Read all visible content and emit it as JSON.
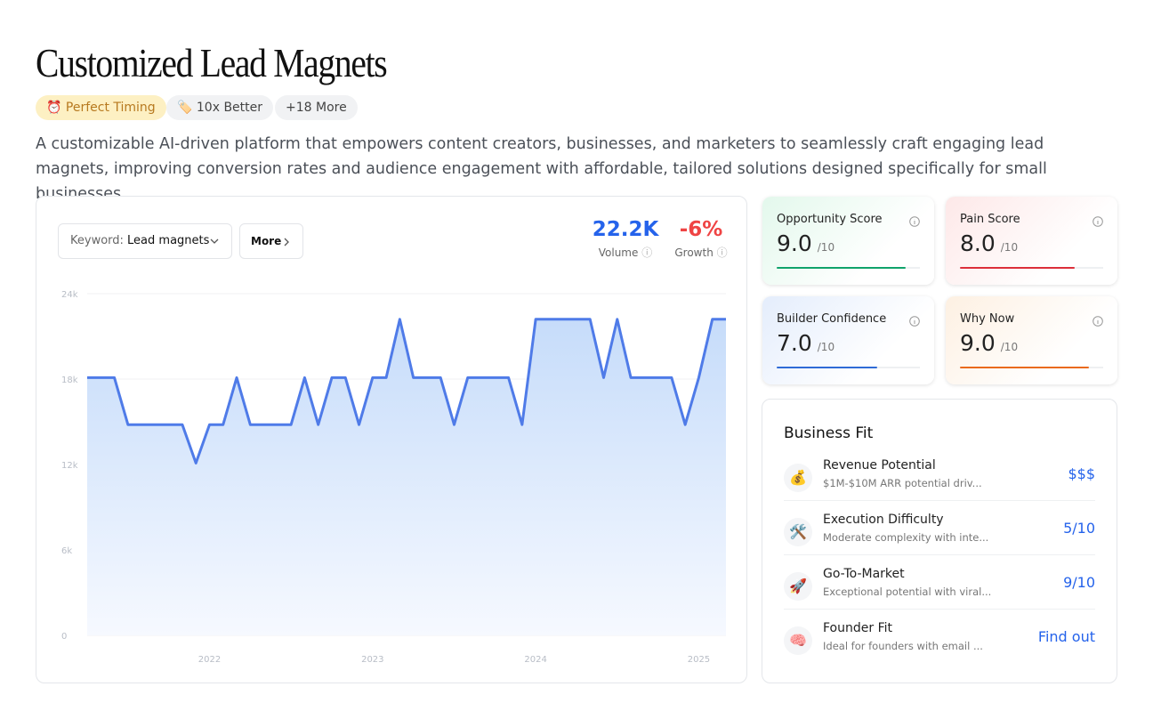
{
  "header": {
    "title": "Customized Lead Magnets",
    "tags": [
      {
        "icon": "⏰",
        "text": "Perfect Timing"
      },
      {
        "icon": "🏷️",
        "text": "10x Better"
      },
      {
        "text": "+18 More"
      }
    ],
    "description": "A customizable AI-driven platform that empowers content creators, businesses, and marketers to seamlessly craft engaging lead magnets, improving conversion rates and audience engagement with affordable, tailored solutions designed specifically for small businesses."
  },
  "controls": {
    "keyword_label": "Keyword:",
    "keyword": "Lead magnets",
    "more": "More"
  },
  "metrics": [
    {
      "value": "22.2K",
      "label": "Volume",
      "color": "#2563eb"
    },
    {
      "value": "-6%",
      "label": "Growth",
      "color": "#ef4444"
    }
  ],
  "chart_data": {
    "type": "area",
    "color": "#4f7be8",
    "categories": [
      null,
      null,
      null,
      null,
      null,
      null,
      null,
      null,
      null,
      "2022",
      null,
      null,
      null,
      null,
      null,
      null,
      null,
      null,
      null,
      null,
      null,
      "2023",
      null,
      null,
      null,
      null,
      null,
      null,
      null,
      null,
      null,
      null,
      null,
      "2024",
      null,
      null,
      null,
      null,
      null,
      null,
      null,
      null,
      null,
      null,
      null,
      "2025",
      null,
      null
    ],
    "values": [
      18100,
      18100,
      18100,
      14800,
      14800,
      14800,
      14800,
      14800,
      12100,
      14800,
      14800,
      18100,
      14800,
      14800,
      14800,
      14800,
      18100,
      14800,
      18100,
      18100,
      14800,
      18100,
      18100,
      22200,
      18100,
      18100,
      18100,
      14800,
      18100,
      18100,
      18100,
      18100,
      14800,
      22200,
      22200,
      22200,
      22200,
      22200,
      18100,
      22200,
      18100,
      18100,
      18100,
      18100,
      14800,
      18100,
      22200,
      22200
    ],
    "ylim": [
      0,
      24000
    ],
    "yticks": [
      0,
      {
        "value": 6000,
        "label": "6k"
      },
      {
        "value": 12000,
        "label": "12k"
      },
      {
        "value": 18000,
        "label": "18k"
      },
      {
        "value": 24000,
        "label": "24k"
      }
    ],
    "grid": true
  },
  "scores": [
    {
      "name": "Opportunity Score",
      "score": 9,
      "score_label": "9.0",
      "max": 10,
      "max_label": "/10",
      "color": "#10a36b",
      "bg": "linear-gradient(135deg,#e3f8ec,#ffffff 70%)"
    },
    {
      "name": "Pain Score",
      "score": 8,
      "score_label": "8.0",
      "max": 10,
      "max_label": "/10",
      "color": "#dc2f3a",
      "bg": "linear-gradient(135deg,#fde8e8,#ffffff 70%)"
    },
    {
      "name": "Builder Confidence",
      "score": 7,
      "score_label": "7.0",
      "max": 10,
      "max_label": "/10",
      "color": "#2f6bd6",
      "bg": "linear-gradient(135deg,#e4edfc,#ffffff 70%)"
    },
    {
      "name": "Why Now",
      "score": 9,
      "score_label": "9.0",
      "max": 10,
      "max_label": "/10",
      "color": "#ea6a1c",
      "bg": "linear-gradient(135deg,#fdf0e2,#ffffff 70%)"
    }
  ],
  "business_fit": {
    "title": "Business Fit",
    "rows": [
      {
        "icon": "💰",
        "title": "Revenue Potential",
        "desc": "$1M-$10M ARR potential driv...",
        "value": "$$$"
      },
      {
        "icon": "🛠️",
        "title": "Execution Difficulty",
        "desc": "Moderate complexity with inte...",
        "value": "5/10"
      },
      {
        "icon": "🚀",
        "title": "Go-To-Market",
        "desc": "Exceptional potential with viral...",
        "value": "9/10"
      },
      {
        "icon": "🧠",
        "title": "Founder Fit",
        "desc": "Ideal for founders with email ...",
        "value": "Find out"
      }
    ]
  }
}
